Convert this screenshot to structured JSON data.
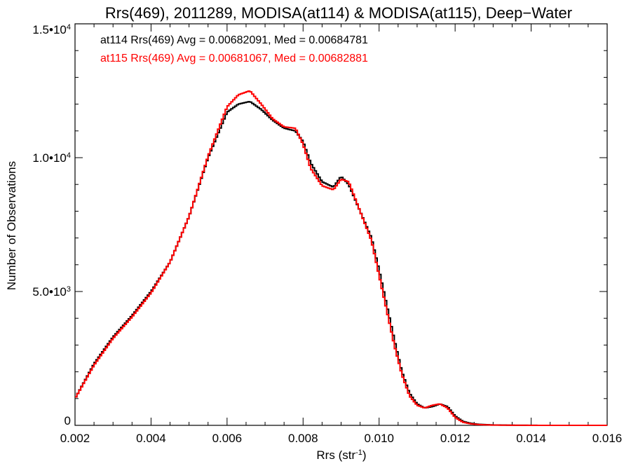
{
  "chart_data": {
    "type": "line",
    "title": "Rrs(469), 2011289, MODISA(at114) & MODISA(at115), Deep−Water",
    "xlabel": {
      "base": "Rrs (str",
      "sup": "-1",
      "tail": ")"
    },
    "ylabel": "Number of Observations",
    "xlim": [
      0.002,
      0.016
    ],
    "ylim": [
      0,
      15000
    ],
    "grid": false,
    "x_ticks": [
      {
        "value": 0.002,
        "label": "0.002"
      },
      {
        "value": 0.004,
        "label": "0.004"
      },
      {
        "value": 0.006,
        "label": "0.006"
      },
      {
        "value": 0.008,
        "label": "0.008"
      },
      {
        "value": 0.01,
        "label": "0.010"
      },
      {
        "value": 0.012,
        "label": "0.012"
      },
      {
        "value": 0.014,
        "label": "0.014"
      },
      {
        "value": 0.016,
        "label": "0.016"
      }
    ],
    "y_ticks": [
      {
        "value": 0,
        "label": "0",
        "sup": ""
      },
      {
        "value": 5000,
        "label": "5.0•10",
        "sup": "3"
      },
      {
        "value": 10000,
        "label": "1.0•10",
        "sup": "4"
      },
      {
        "value": 15000,
        "label": "1.5•10",
        "sup": "4"
      }
    ],
    "annotations": [
      {
        "text": "at114 Rrs(469) Avg = 0.00682091, Med = 0.00684781",
        "color": "#000000"
      },
      {
        "text": "at115 Rrs(469) Avg = 0.00681067, Med = 0.00682881",
        "color": "#ff0000"
      }
    ],
    "series": [
      {
        "color": "#000000",
        "x": [
          0.002,
          0.0025,
          0.003,
          0.0035,
          0.004,
          0.0045,
          0.005,
          0.0055,
          0.006,
          0.0063,
          0.0066,
          0.0069,
          0.0072,
          0.0075,
          0.0078,
          0.008,
          0.0082,
          0.0085,
          0.0088,
          0.009,
          0.0092,
          0.0095,
          0.0098,
          0.01,
          0.0102,
          0.0104,
          0.0106,
          0.0108,
          0.011,
          0.0112,
          0.0114,
          0.0116,
          0.0118,
          0.012,
          0.0122,
          0.0124,
          0.0126,
          0.013,
          0.0135,
          0.014,
          0.015,
          0.016
        ],
        "y": [
          1000,
          2300,
          3300,
          4100,
          5000,
          6100,
          7800,
          10000,
          11700,
          12000,
          12100,
          11800,
          11400,
          11100,
          11000,
          10600,
          9800,
          9100,
          8900,
          9300,
          9000,
          8000,
          7000,
          5800,
          4500,
          3200,
          2000,
          1200,
          800,
          650,
          700,
          800,
          700,
          350,
          150,
          80,
          40,
          15,
          5,
          2,
          0,
          0
        ]
      },
      {
        "color": "#ff0000",
        "x": [
          0.002,
          0.0025,
          0.003,
          0.0035,
          0.004,
          0.0045,
          0.005,
          0.0055,
          0.006,
          0.0063,
          0.0066,
          0.0069,
          0.0072,
          0.0075,
          0.0078,
          0.008,
          0.0082,
          0.0085,
          0.0088,
          0.009,
          0.0092,
          0.0095,
          0.0098,
          0.01,
          0.0102,
          0.0104,
          0.0106,
          0.0108,
          0.011,
          0.0112,
          0.0114,
          0.0116,
          0.0118,
          0.012,
          0.0122,
          0.0124,
          0.0126,
          0.013,
          0.0135,
          0.014,
          0.015,
          0.016
        ],
        "y": [
          1000,
          2250,
          3250,
          4050,
          4950,
          6100,
          7800,
          10050,
          11900,
          12350,
          12500,
          12000,
          11450,
          11150,
          11100,
          10500,
          9600,
          8950,
          8800,
          9200,
          9100,
          8000,
          6900,
          5600,
          4300,
          3000,
          1900,
          1100,
          750,
          650,
          750,
          800,
          650,
          300,
          120,
          60,
          30,
          10,
          4,
          1,
          0,
          0
        ]
      }
    ]
  }
}
